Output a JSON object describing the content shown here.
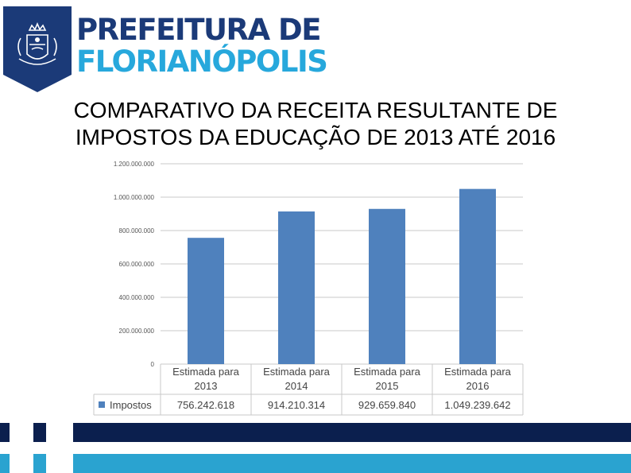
{
  "brand": {
    "line1": "PREFEITURA DE",
    "line2": "FLORIANÓPOLIS",
    "color_primary": "#1b3a78",
    "color_secondary": "#27a8dc"
  },
  "slide": {
    "title_line1": "COMPARATIVO DA RECEITA RESULTANTE DE",
    "title_line2": "IMPOSTOS DA EDUCAÇÃO DE 2013 ATÉ 2016"
  },
  "chart_data": {
    "type": "bar",
    "categories": [
      "Estimada para 2013",
      "Estimada para 2014",
      "Estimada para 2015",
      "Estimada para 2016"
    ],
    "series": [
      {
        "name": "Impostos",
        "values": [
          756242618,
          914210314,
          929659840,
          1049239642
        ],
        "color": "#4f81bd"
      }
    ],
    "value_labels": [
      "756.242.618",
      "914.210.314",
      "929.659.840",
      "1.049.239.642"
    ],
    "yticks": [
      "0",
      "200.000.000",
      "400.000.000",
      "600.000.000",
      "800.000.000",
      "1.000.000.000",
      "1.200.000.000"
    ],
    "ylim": [
      0,
      1200000000
    ],
    "grid": true,
    "legend": "data-table"
  },
  "footer": {
    "color_dark": "#0b1f4e",
    "color_light": "#2aa3d0"
  }
}
